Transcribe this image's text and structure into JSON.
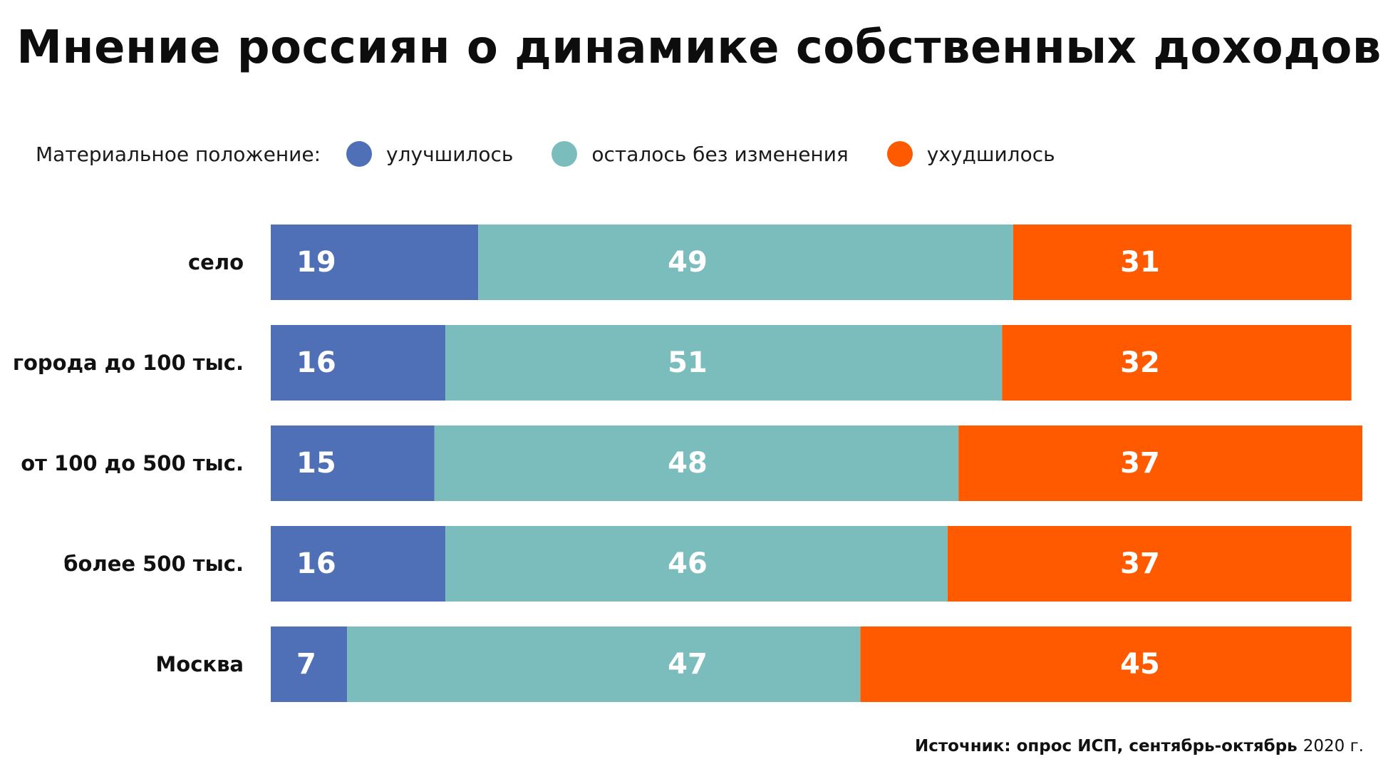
{
  "chart_data": {
    "type": "bar",
    "orientation": "horizontal",
    "stacked": true,
    "title": "Мнение россиян о динамике собственных доходов",
    "legend_title": "Материальное положение:",
    "legend_placement": "top-left",
    "categories": [
      "село",
      "города до 100 тыс.",
      "от 100 до 500 тыс.",
      "более 500 тыс.",
      "Москва"
    ],
    "series": [
      {
        "name": "улучшилось",
        "color": "#4f6fb6",
        "values": [
          19,
          16,
          15,
          16,
          7
        ]
      },
      {
        "name": "осталось без изменения",
        "color": "#7bbdbc",
        "values": [
          49,
          51,
          48,
          46,
          47
        ]
      },
      {
        "name": "ухудшилось",
        "color": "#ff5a00",
        "values": [
          31,
          32,
          37,
          37,
          45
        ]
      }
    ],
    "xlim": [
      0,
      100
    ],
    "grid": false
  },
  "source": {
    "label": "Источник",
    "text": ": опрос ИСП, сентябрь-октябрь ",
    "year": "2020 г."
  }
}
